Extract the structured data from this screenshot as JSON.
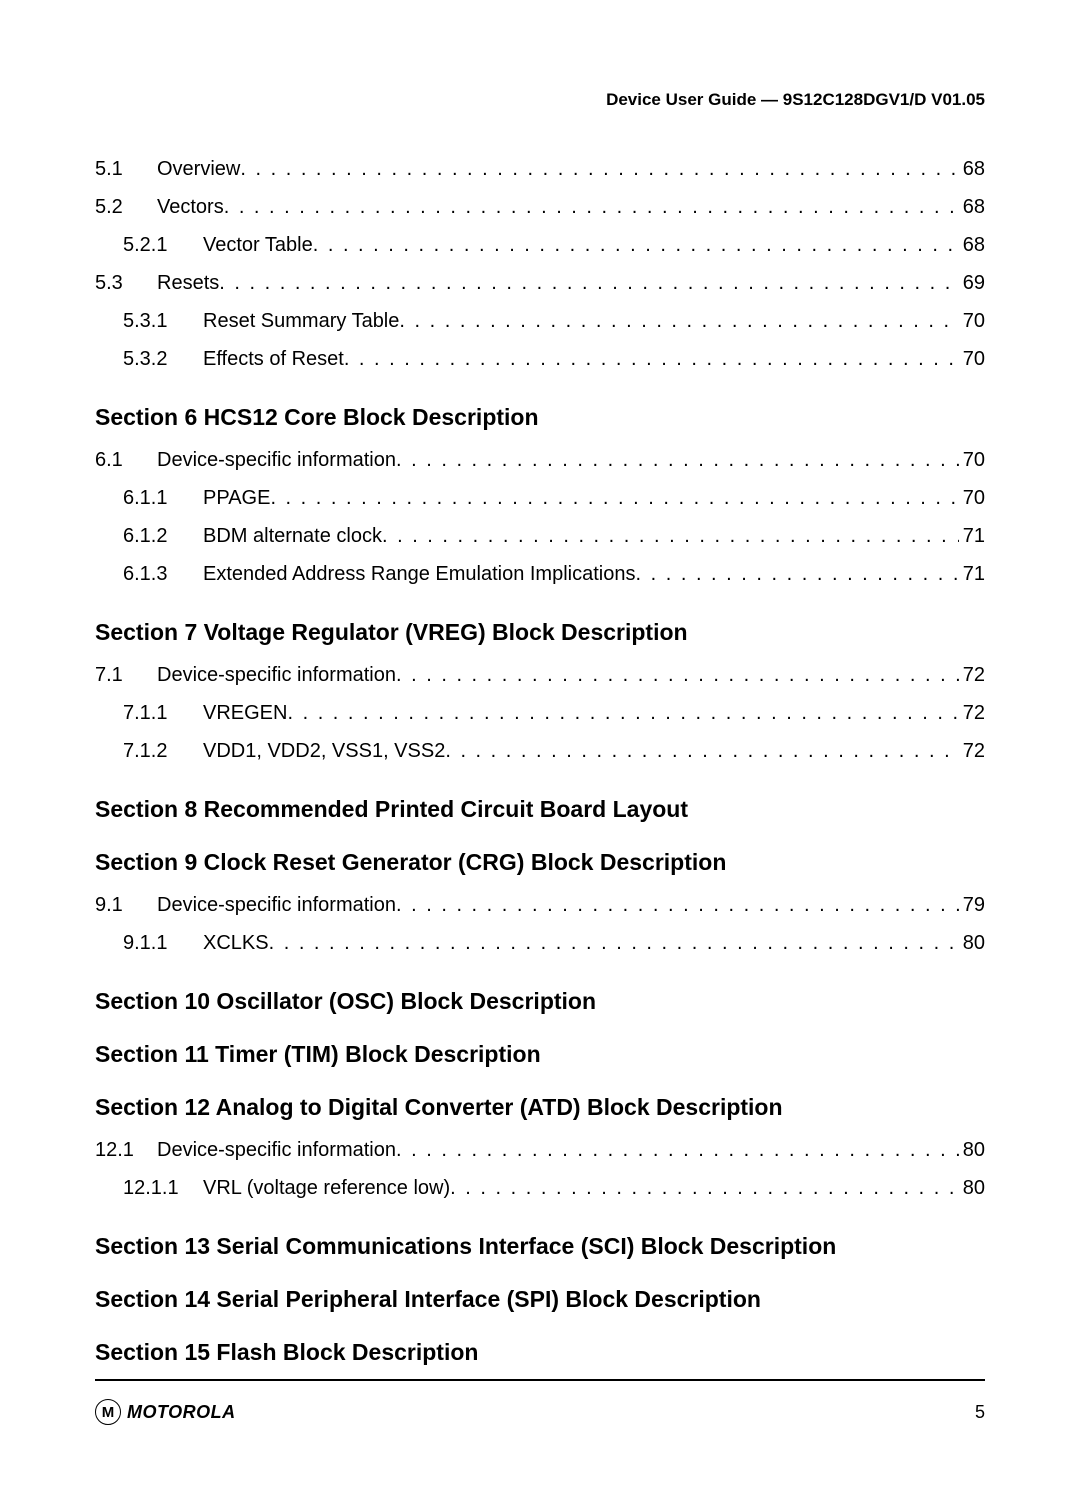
{
  "header": "Device User Guide — 9S12C128DGV1/D V01.05",
  "preRows": [
    {
      "num": "5.1",
      "title": "Overview",
      "page": "68",
      "level": 1
    },
    {
      "num": "5.2",
      "title": "Vectors",
      "page": "68",
      "level": 1
    },
    {
      "num": "5.2.1",
      "title": "Vector Table",
      "page": "68",
      "level": 2
    },
    {
      "num": "5.3",
      "title": "Resets",
      "page": "69",
      "level": 1
    },
    {
      "num": "5.3.1",
      "title": "Reset Summary Table",
      "page": "70",
      "level": 2
    },
    {
      "num": "5.3.2",
      "title": "Effects of Reset",
      "page": "70",
      "level": 2
    }
  ],
  "sections": [
    {
      "heading": "Section 6 HCS12 Core Block Description",
      "rows": [
        {
          "num": "6.1",
          "title": "Device-specific information",
          "page": "70",
          "level": 1
        },
        {
          "num": "6.1.1",
          "title": "PPAGE",
          "page": "70",
          "level": 2
        },
        {
          "num": "6.1.2",
          "title": "BDM alternate clock",
          "page": "71",
          "level": 2
        },
        {
          "num": "6.1.3",
          "title": "Extended Address Range Emulation Implications",
          "page": "71",
          "level": 2
        }
      ]
    },
    {
      "heading": "Section 7 Voltage Regulator (VREG) Block Description",
      "rows": [
        {
          "num": "7.1",
          "title": "Device-specific information",
          "page": "72",
          "level": 1
        },
        {
          "num": "7.1.1",
          "title": "VREGEN",
          "page": "72",
          "level": 2
        },
        {
          "num": "7.1.2",
          "title": "VDD1, VDD2, VSS1, VSS2",
          "page": "72",
          "level": 2
        }
      ]
    },
    {
      "heading": "Section 8 Recommended Printed Circuit Board Layout",
      "rows": []
    },
    {
      "heading": "Section 9 Clock Reset Generator (CRG) Block Description",
      "rows": [
        {
          "num": "9.1",
          "title": "Device-specific information",
          "page": "79",
          "level": 1
        },
        {
          "num": "9.1.1",
          "title": "XCLKS",
          "page": "80",
          "level": 2
        }
      ]
    },
    {
      "heading": "Section 10 Oscillator (OSC) Block Description",
      "rows": []
    },
    {
      "heading": "Section 11 Timer (TIM) Block Description",
      "rows": []
    },
    {
      "heading": "Section 12 Analog to Digital Converter (ATD) Block Description",
      "rows": [
        {
          "num": "12.1",
          "title": "Device-specific information",
          "page": "80",
          "level": 1
        },
        {
          "num": "12.1.1",
          "title": "VRL (voltage reference low)",
          "page": "80",
          "level": 2
        }
      ]
    },
    {
      "heading": "Section 13 Serial Communications Interface (SCI) Block Description",
      "rows": []
    },
    {
      "heading": "Section 14 Serial Peripheral Interface (SPI) Block Description",
      "rows": []
    },
    {
      "heading": "Section 15 Flash Block Description",
      "rows": []
    }
  ],
  "footer": {
    "logoMark": "M",
    "logoText": "MOTOROLA",
    "pageNumber": "5"
  }
}
